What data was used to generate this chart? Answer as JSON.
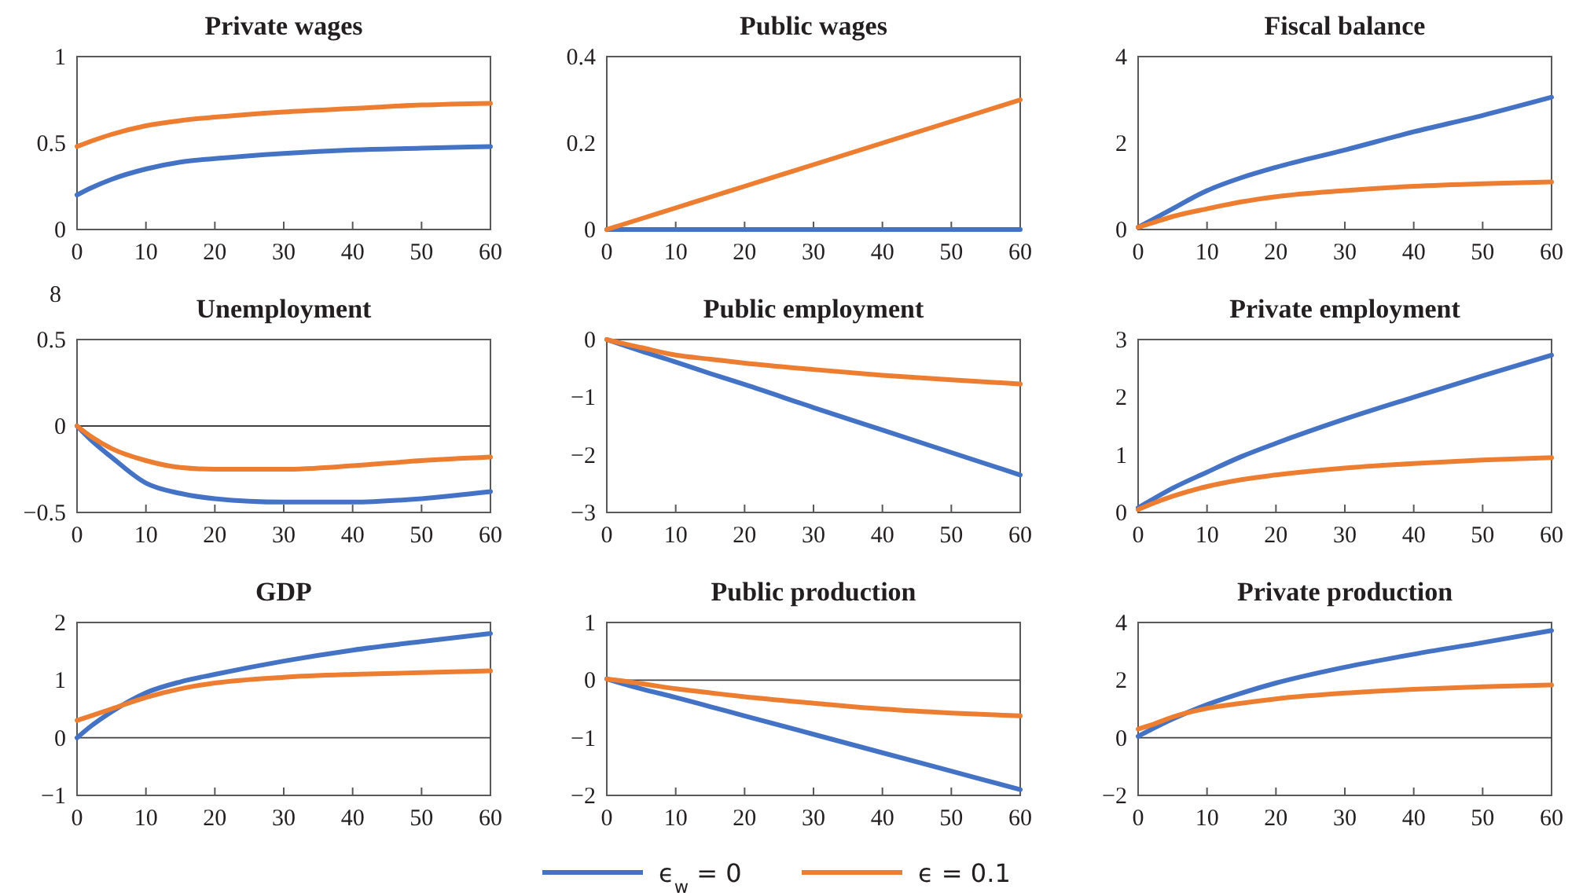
{
  "chart_data": [
    {
      "type": "line",
      "title": "Private wages",
      "x": [
        0,
        2,
        5,
        10,
        15,
        20,
        30,
        40,
        50,
        60
      ],
      "xlim": [
        0,
        60
      ],
      "xticks": [
        0,
        10,
        20,
        30,
        40,
        50,
        60
      ],
      "ylim": [
        0,
        1
      ],
      "yticks": [
        0,
        0.5,
        1
      ],
      "series": [
        {
          "color": "#4472c4",
          "values": [
            0.2,
            0.24,
            0.29,
            0.35,
            0.39,
            0.41,
            0.44,
            0.46,
            0.47,
            0.48
          ]
        },
        {
          "color": "#ed7d31",
          "values": [
            0.48,
            0.51,
            0.55,
            0.6,
            0.63,
            0.65,
            0.68,
            0.7,
            0.72,
            0.73
          ]
        }
      ]
    },
    {
      "type": "line",
      "title": "Public wages",
      "x": [
        0,
        2,
        5,
        10,
        15,
        20,
        30,
        40,
        50,
        60
      ],
      "xlim": [
        0,
        60
      ],
      "xticks": [
        0,
        10,
        20,
        30,
        40,
        50,
        60
      ],
      "ylim": [
        0,
        0.4
      ],
      "yticks": [
        0,
        0.2,
        0.4
      ],
      "series": [
        {
          "color": "#4472c4",
          "values": [
            0,
            0,
            0,
            0,
            0,
            0,
            0,
            0,
            0,
            0
          ]
        },
        {
          "color": "#ed7d31",
          "values": [
            0,
            0.01,
            0.025,
            0.05,
            0.075,
            0.1,
            0.15,
            0.2,
            0.25,
            0.3
          ]
        }
      ]
    },
    {
      "type": "line",
      "title": "Fiscal balance",
      "x": [
        0,
        2,
        5,
        10,
        15,
        20,
        30,
        40,
        50,
        60
      ],
      "xlim": [
        0,
        60
      ],
      "xticks": [
        0,
        10,
        20,
        30,
        40,
        50,
        60
      ],
      "ylim": [
        0,
        4
      ],
      "yticks": [
        0,
        2,
        4
      ],
      "series": [
        {
          "color": "#4472c4",
          "values": [
            0.05,
            0.22,
            0.48,
            0.9,
            1.2,
            1.44,
            1.84,
            2.26,
            2.64,
            3.06
          ]
        },
        {
          "color": "#ed7d31",
          "values": [
            0.05,
            0.15,
            0.3,
            0.48,
            0.64,
            0.76,
            0.9,
            1.0,
            1.06,
            1.1
          ]
        }
      ]
    },
    {
      "type": "line",
      "title": "Unemployment",
      "annotations": [
        "8"
      ],
      "x": [
        0,
        2,
        5,
        10,
        15,
        20,
        30,
        40,
        50,
        60
      ],
      "xlim": [
        0,
        60
      ],
      "xticks": [
        0,
        10,
        20,
        30,
        40,
        50,
        60
      ],
      "ylim": [
        -0.5,
        0.5
      ],
      "yticks": [
        -0.5,
        0,
        0.5
      ],
      "ref_lines": [
        {
          "axis": "y",
          "value": 0,
          "color": "#404040"
        }
      ],
      "series": [
        {
          "color": "#4472c4",
          "values": [
            0,
            -0.08,
            -0.18,
            -0.33,
            -0.39,
            -0.42,
            -0.44,
            -0.44,
            -0.42,
            -0.38
          ]
        },
        {
          "color": "#ed7d31",
          "values": [
            0,
            -0.06,
            -0.13,
            -0.2,
            -0.24,
            -0.25,
            -0.25,
            -0.23,
            -0.2,
            -0.18
          ]
        }
      ]
    },
    {
      "type": "line",
      "title": "Public employment",
      "x": [
        0,
        2,
        5,
        10,
        15,
        20,
        30,
        40,
        50,
        60
      ],
      "xlim": [
        0,
        60
      ],
      "xticks": [
        0,
        10,
        20,
        30,
        40,
        50,
        60
      ],
      "ylim": [
        -3,
        0
      ],
      "yticks": [
        -3,
        -2,
        -1,
        0
      ],
      "series": [
        {
          "color": "#4472c4",
          "values": [
            0,
            -0.08,
            -0.2,
            -0.39,
            -0.59,
            -0.78,
            -1.18,
            -1.57,
            -1.96,
            -2.35
          ]
        },
        {
          "color": "#ed7d31",
          "values": [
            0,
            -0.06,
            -0.14,
            -0.27,
            -0.34,
            -0.41,
            -0.52,
            -0.62,
            -0.7,
            -0.77
          ]
        }
      ]
    },
    {
      "type": "line",
      "title": "Private employment",
      "x": [
        0,
        2,
        5,
        10,
        15,
        20,
        30,
        40,
        50,
        60
      ],
      "xlim": [
        0,
        60
      ],
      "xticks": [
        0,
        10,
        20,
        30,
        40,
        50,
        60
      ],
      "ylim": [
        0,
        3
      ],
      "yticks": [
        0,
        1,
        2,
        3
      ],
      "series": [
        {
          "color": "#4472c4",
          "values": [
            0.08,
            0.22,
            0.42,
            0.7,
            0.97,
            1.2,
            1.62,
            2.0,
            2.37,
            2.73
          ]
        },
        {
          "color": "#ed7d31",
          "values": [
            0.05,
            0.15,
            0.28,
            0.45,
            0.57,
            0.65,
            0.77,
            0.85,
            0.91,
            0.95
          ]
        }
      ]
    },
    {
      "type": "line",
      "title": "GDP",
      "x": [
        0,
        2,
        5,
        10,
        15,
        20,
        30,
        40,
        50,
        60
      ],
      "xlim": [
        0,
        60
      ],
      "xticks": [
        0,
        10,
        20,
        30,
        40,
        50,
        60
      ],
      "ylim": [
        -1,
        2
      ],
      "yticks": [
        -1,
        0,
        1,
        2
      ],
      "ref_lines": [
        {
          "axis": "y",
          "value": 0,
          "color": "#404040"
        }
      ],
      "series": [
        {
          "color": "#4472c4",
          "values": [
            0,
            0.2,
            0.45,
            0.78,
            0.97,
            1.1,
            1.33,
            1.52,
            1.67,
            1.81
          ]
        },
        {
          "color": "#ed7d31",
          "values": [
            0.3,
            0.38,
            0.5,
            0.7,
            0.85,
            0.95,
            1.05,
            1.1,
            1.13,
            1.16
          ]
        }
      ]
    },
    {
      "type": "line",
      "title": "Public production",
      "legend": "bottom",
      "x": [
        0,
        2,
        5,
        10,
        15,
        20,
        30,
        40,
        50,
        60
      ],
      "xlim": [
        0,
        60
      ],
      "xticks": [
        0,
        10,
        20,
        30,
        40,
        50,
        60
      ],
      "ylim": [
        -2,
        1
      ],
      "yticks": [
        -2,
        -1,
        0,
        1
      ],
      "ref_lines": [
        {
          "axis": "y",
          "value": 0,
          "color": "#404040"
        }
      ],
      "series": [
        {
          "name": "ϵ$_{w}$ = 0",
          "color": "#4472c4",
          "values": [
            0.02,
            -0.05,
            -0.15,
            -0.3,
            -0.46,
            -0.62,
            -0.94,
            -1.26,
            -1.58,
            -1.9
          ]
        },
        {
          "name": "ϵ = 0.1",
          "color": "#ed7d31",
          "values": [
            0.02,
            -0.01,
            -0.06,
            -0.15,
            -0.22,
            -0.29,
            -0.4,
            -0.5,
            -0.57,
            -0.62
          ]
        }
      ]
    },
    {
      "type": "line",
      "title": "Private production",
      "x": [
        0,
        2,
        5,
        10,
        15,
        20,
        30,
        40,
        50,
        60
      ],
      "xlim": [
        0,
        60
      ],
      "xticks": [
        0,
        10,
        20,
        30,
        40,
        50,
        60
      ],
      "ylim": [
        -2,
        4
      ],
      "yticks": [
        -2,
        0,
        2,
        4
      ],
      "ref_lines": [
        {
          "axis": "y",
          "value": 0,
          "color": "#404040"
        }
      ],
      "series": [
        {
          "color": "#4472c4",
          "values": [
            0.05,
            0.3,
            0.65,
            1.15,
            1.55,
            1.9,
            2.45,
            2.9,
            3.3,
            3.72
          ]
        },
        {
          "color": "#ed7d31",
          "values": [
            0.3,
            0.45,
            0.72,
            1.02,
            1.2,
            1.35,
            1.55,
            1.68,
            1.77,
            1.83
          ]
        }
      ]
    }
  ]
}
